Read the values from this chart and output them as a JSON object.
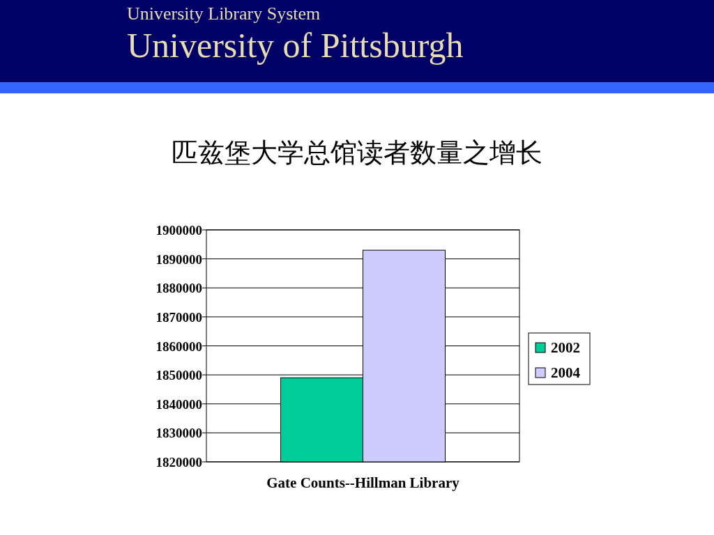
{
  "chart_data": {
    "type": "bar",
    "title": "匹兹堡大学总馆读者数量之增长",
    "annotations": [
      "University Library System",
      "University of Pittsburgh"
    ],
    "xlabel": "Gate Counts--Hillman Library",
    "categories": [
      null
    ],
    "series": [
      {
        "name": "2002",
        "color": "#00cc99",
        "values": [
          1849000
        ]
      },
      {
        "name": "2004",
        "color": "#ccccff",
        "values": [
          1893000
        ]
      }
    ],
    "ylim": [
      1820000,
      1900000
    ],
    "yticks": [
      1820000,
      1830000,
      1840000,
      1850000,
      1860000,
      1870000,
      1880000,
      1890000,
      1900000
    ],
    "grid": "y",
    "legend": "right"
  }
}
